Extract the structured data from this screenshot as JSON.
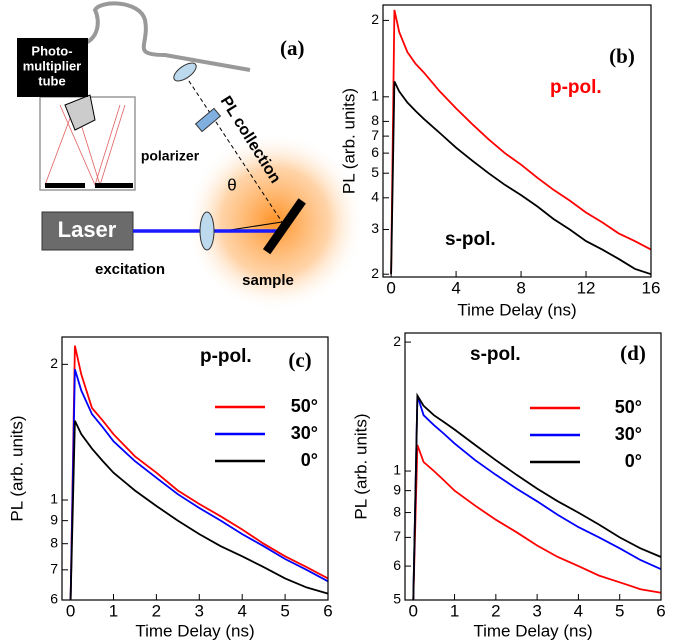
{
  "diagram": {
    "panel_label": "(a)",
    "pmt_label": [
      "Photo-",
      "multiplier",
      "tube"
    ],
    "collection_label": "PL collection",
    "polarizer_label": "polarizer",
    "angle_label": "θ",
    "laser_label": "Laser",
    "excitation_label": "excitation",
    "sample_label": "sample"
  },
  "chart_data": [
    {
      "type": "line",
      "panel_label": "(b)",
      "xlabel": "Time Delay (ns)",
      "ylabel": "PL (arb. units)",
      "yscale": "log",
      "xlim": [
        -0.5,
        16
      ],
      "xticks": [
        0,
        4,
        8,
        12,
        16
      ],
      "ylim": [
        0.195,
        2.3
      ],
      "yticks": [
        {
          "value": 0.2,
          "label": "2"
        },
        {
          "value": 0.3,
          "label": "3"
        },
        {
          "value": 0.4,
          "label": "4"
        },
        {
          "value": 0.5,
          "label": "5"
        },
        {
          "value": 0.6,
          "label": "6"
        },
        {
          "value": 0.7,
          "label": "7"
        },
        {
          "value": 0.8,
          "label": "8"
        },
        1,
        {
          "value": 2,
          "label": "2"
        }
      ],
      "annotations": [
        {
          "text": "p-pol.",
          "color": "#ff0000"
        },
        {
          "text": "s-pol.",
          "color": "#000000"
        }
      ],
      "x": [
        0,
        0.2,
        0.5,
        1,
        1.5,
        2,
        3,
        4,
        5,
        6,
        7,
        8,
        9,
        10,
        11,
        12,
        13,
        14,
        15,
        16
      ],
      "series": [
        {
          "color": "#ff0000",
          "values": [
            0.2,
            2.2,
            1.8,
            1.5,
            1.35,
            1.25,
            1.05,
            0.9,
            0.78,
            0.68,
            0.6,
            0.54,
            0.48,
            0.43,
            0.39,
            0.35,
            0.32,
            0.29,
            0.27,
            0.25
          ]
        },
        {
          "color": "#000000",
          "values": [
            0.2,
            1.15,
            1.05,
            0.95,
            0.88,
            0.82,
            0.72,
            0.63,
            0.56,
            0.5,
            0.45,
            0.41,
            0.37,
            0.33,
            0.3,
            0.27,
            0.25,
            0.23,
            0.21,
            0.2
          ]
        }
      ]
    },
    {
      "type": "line",
      "panel_label": "(c)",
      "xlabel": "Time Delay (ns)",
      "ylabel": "PL (arb. units)",
      "yscale": "log",
      "legend": "upper right",
      "xlim": [
        -0.2,
        6
      ],
      "xticks": [
        0,
        1,
        2,
        3,
        4,
        5,
        6
      ],
      "ylim": [
        0.6,
        2.3
      ],
      "yticks": [
        {
          "value": 0.6,
          "label": "6"
        },
        {
          "value": 0.7,
          "label": "7"
        },
        {
          "value": 0.8,
          "label": "8"
        },
        {
          "value": 0.9,
          "label": "9"
        },
        1,
        2
      ],
      "annotations": [
        {
          "text": "p-pol.",
          "color": "#000000"
        }
      ],
      "x": [
        0,
        0.1,
        0.25,
        0.5,
        0.75,
        1,
        1.5,
        2,
        2.5,
        3,
        3.5,
        4,
        4.5,
        5,
        5.5,
        6
      ],
      "series": [
        {
          "name": "50°",
          "color": "#ff0000",
          "values": [
            0.6,
            2.2,
            1.9,
            1.6,
            1.5,
            1.4,
            1.25,
            1.15,
            1.05,
            0.98,
            0.92,
            0.86,
            0.8,
            0.75,
            0.71,
            0.67
          ]
        },
        {
          "name": "30°",
          "color": "#0000ff",
          "values": [
            0.6,
            1.95,
            1.75,
            1.55,
            1.45,
            1.35,
            1.22,
            1.12,
            1.03,
            0.96,
            0.9,
            0.84,
            0.79,
            0.74,
            0.7,
            0.66
          ]
        },
        {
          "name": "0°",
          "color": "#000000",
          "values": [
            0.6,
            1.5,
            1.4,
            1.3,
            1.22,
            1.15,
            1.05,
            0.97,
            0.9,
            0.84,
            0.79,
            0.75,
            0.71,
            0.67,
            0.64,
            0.62
          ]
        }
      ]
    },
    {
      "type": "line",
      "panel_label": "(d)",
      "xlabel": "Time Delay (ns)",
      "ylabel": "PL (arb. units)",
      "yscale": "log",
      "legend": "upper right",
      "xlim": [
        -0.2,
        6
      ],
      "xticks": [
        0,
        1,
        2,
        3,
        4,
        5,
        6
      ],
      "ylim": [
        0.5,
        2.1
      ],
      "yticks": [
        {
          "value": 0.5,
          "label": "5"
        },
        {
          "value": 0.6,
          "label": "6"
        },
        {
          "value": 0.7,
          "label": "7"
        },
        {
          "value": 0.8,
          "label": "8"
        },
        {
          "value": 0.9,
          "label": "9"
        },
        1,
        2
      ],
      "annotations": [
        {
          "text": "s-pol.",
          "color": "#000000"
        }
      ],
      "x": [
        0,
        0.1,
        0.25,
        0.5,
        0.75,
        1,
        1.5,
        2,
        2.5,
        3,
        3.5,
        4,
        4.5,
        5,
        5.5,
        6
      ],
      "series": [
        {
          "name": "50°",
          "color": "#ff0000",
          "values": [
            0.5,
            1.15,
            1.05,
            1.0,
            0.95,
            0.9,
            0.83,
            0.77,
            0.72,
            0.67,
            0.63,
            0.6,
            0.57,
            0.55,
            0.53,
            0.52
          ]
        },
        {
          "name": "30°",
          "color": "#0000ff",
          "values": [
            0.5,
            1.5,
            1.35,
            1.28,
            1.22,
            1.16,
            1.06,
            0.98,
            0.91,
            0.85,
            0.79,
            0.74,
            0.7,
            0.66,
            0.62,
            0.59
          ]
        },
        {
          "name": "0°",
          "color": "#000000",
          "values": [
            0.5,
            1.5,
            1.42,
            1.35,
            1.3,
            1.25,
            1.15,
            1.06,
            0.98,
            0.91,
            0.85,
            0.8,
            0.75,
            0.7,
            0.66,
            0.63
          ]
        }
      ]
    }
  ]
}
